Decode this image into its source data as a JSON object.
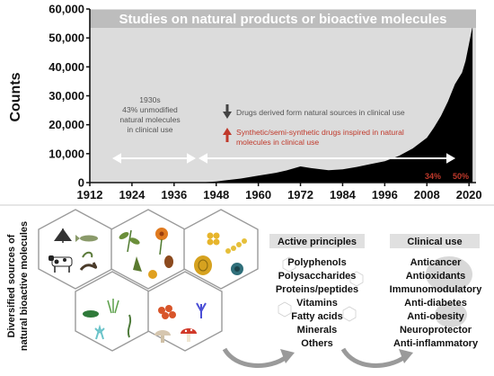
{
  "chart_data": {
    "type": "area",
    "title": "Studies on natural products or bioactive molecules",
    "ylabel": "Counts",
    "xlabel": "",
    "xlim": [
      1912,
      2022
    ],
    "ylim": [
      0,
      60000
    ],
    "x_ticks": [
      1912,
      1924,
      1936,
      1948,
      1960,
      1972,
      1984,
      1996,
      2008,
      2020
    ],
    "y_ticks": [
      0,
      10000,
      20000,
      30000,
      40000,
      50000,
      60000
    ],
    "y_tick_labels": [
      "0",
      "10,000",
      "20,000",
      "30,000",
      "40,000",
      "50,000",
      "60,000"
    ],
    "x": [
      1912,
      1920,
      1930,
      1940,
      1945,
      1948,
      1950,
      1955,
      1960,
      1965,
      1968,
      1972,
      1975,
      1980,
      1984,
      1988,
      1992,
      1996,
      2000,
      2004,
      2008,
      2010,
      2012,
      2014,
      2016,
      2018,
      2019,
      2020,
      2021
    ],
    "values": [
      0,
      0,
      0,
      50,
      150,
      400,
      700,
      1400,
      2400,
      3400,
      4200,
      5600,
      5000,
      4300,
      4600,
      5400,
      6400,
      7400,
      9200,
      11800,
      15500,
      19000,
      23000,
      28000,
      34000,
      38000,
      42000,
      48000,
      54000
    ],
    "grid": false,
    "legend": "none",
    "fill_color": "#000000",
    "background_color": "#dcdcdc",
    "annotations": {
      "era_1930s": [
        "1930s",
        "43% unmodified",
        "natural molecules",
        "in clinical use"
      ],
      "drugs_natural": "Drugs derived form natural sources in clinical use",
      "drugs_synthetic": [
        "Synthetic/semi-synthetic drugs inspired in natural",
        "molecules in clinical use"
      ],
      "pct_2008": "34%",
      "pct_2020": "50%"
    }
  },
  "colors": {
    "arrow_dark": "#444444",
    "arrow_red": "#c0392b",
    "accent_red": "#c0392b"
  },
  "sources": {
    "label_lines": [
      "Diversified sources of",
      "natural bioactive molecules"
    ],
    "icons": [
      "lichen-icon",
      "fish-icon",
      "cow-icon",
      "snake-icon",
      "sponge-icon",
      "plant-icon",
      "flower-icon",
      "root-icon",
      "bean-icon",
      "fruit-icon",
      "algae-colony-icon",
      "fungus-cross-section-icon",
      "bacteria-chain-icon",
      "sea-urchin-icon",
      "seagrass-icon",
      "aquatic-plant-icon",
      "coral-icon",
      "seaweed-icon",
      "coral-red-icon",
      "mushroom-icon",
      "amanita-icon",
      "blue-coral-icon"
    ]
  },
  "active_principles": {
    "header": "Active principles",
    "items": [
      "Polyphenols",
      "Polysaccharides",
      "Proteins/peptides",
      "Vitamins",
      "Fatty acids",
      "Minerals",
      "Others"
    ]
  },
  "clinical_use": {
    "header": "Clinical use",
    "items": [
      "Anticancer",
      "Antioxidants",
      "Immunomodulatory",
      "Anti-diabetes",
      "Anti-obesity",
      "Neuroprotector",
      "Anti-inflammatory"
    ]
  }
}
